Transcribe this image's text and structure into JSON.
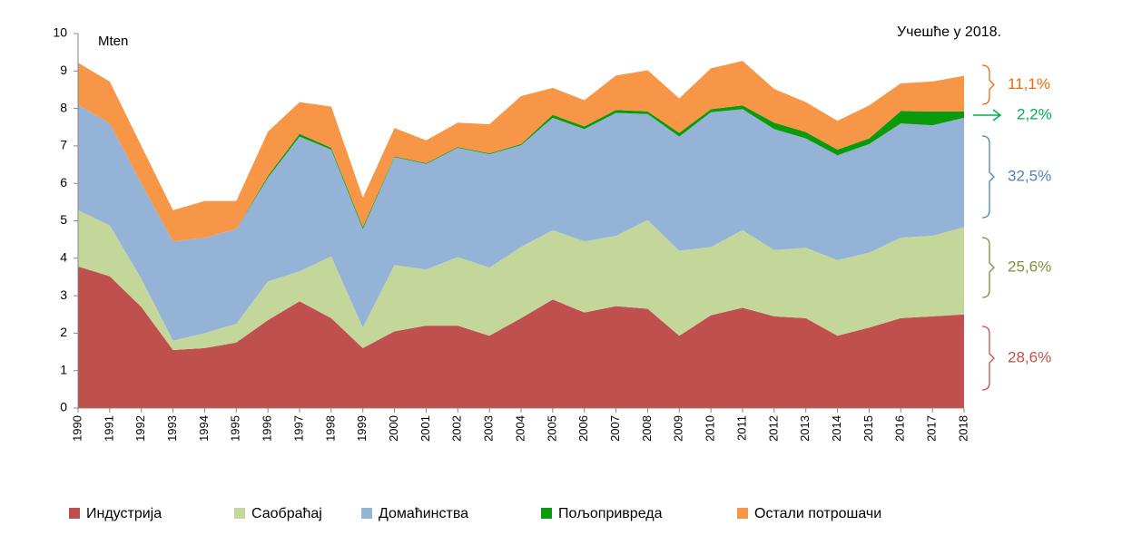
{
  "chart_data": {
    "type": "stacked-area",
    "unit_label": "Mten",
    "share_title": "Учешће у 2018.",
    "categories": [
      "1990",
      "1991",
      "1992",
      "1993",
      "1994",
      "1995",
      "1996",
      "1997",
      "1998",
      "1999",
      "2000",
      "2001",
      "2002",
      "2003",
      "2004",
      "2005",
      "2006",
      "2007",
      "2008",
      "2009",
      "2010",
      "2011",
      "2012",
      "2013",
      "2014",
      "2015",
      "2016",
      "2017",
      "2018"
    ],
    "series": [
      {
        "name": "Индустрија",
        "color": "#c0504d",
        "values": [
          3.78,
          3.52,
          2.7,
          1.55,
          1.6,
          1.75,
          2.35,
          2.85,
          2.4,
          1.6,
          2.05,
          2.2,
          2.2,
          1.93,
          2.4,
          2.9,
          2.55,
          2.72,
          2.65,
          1.93,
          2.48,
          2.68,
          2.45,
          2.4,
          1.93,
          2.15,
          2.4,
          2.45,
          2.5
        ]
      },
      {
        "name": "Саобраћај",
        "color": "#c4d79b",
        "values": [
          1.5,
          1.36,
          0.75,
          0.25,
          0.4,
          0.5,
          1.03,
          0.8,
          1.65,
          0.55,
          1.77,
          1.5,
          1.83,
          1.82,
          1.9,
          1.85,
          1.9,
          1.88,
          2.37,
          2.27,
          1.82,
          2.07,
          1.77,
          1.88,
          2.02,
          2.0,
          2.15,
          2.15,
          2.33
        ]
      },
      {
        "name": "Домаћинства",
        "color": "#95b3d7",
        "values": [
          2.82,
          2.72,
          2.55,
          2.65,
          2.55,
          2.53,
          2.77,
          3.6,
          2.85,
          2.63,
          2.88,
          2.82,
          2.92,
          3.03,
          2.72,
          3.0,
          3.0,
          3.28,
          2.83,
          3.05,
          3.6,
          3.23,
          3.23,
          2.92,
          2.8,
          2.9,
          3.05,
          2.95,
          2.92
        ]
      },
      {
        "name": "Пољопривреда",
        "color": "#0a9a0a",
        "values": [
          0,
          0,
          0,
          0,
          0,
          0,
          0.05,
          0.07,
          0.05,
          0.05,
          0.02,
          0.02,
          0.02,
          0.02,
          0.03,
          0.08,
          0.07,
          0.08,
          0.07,
          0.1,
          0.08,
          0.1,
          0.17,
          0.17,
          0.15,
          0.15,
          0.33,
          0.37,
          0.17
        ]
      },
      {
        "name": "Остали потрошачи",
        "color": "#f79646",
        "values": [
          1.12,
          1.12,
          1.0,
          0.83,
          0.98,
          0.75,
          1.18,
          0.85,
          1.1,
          0.79,
          0.76,
          0.61,
          0.65,
          0.78,
          1.28,
          0.72,
          0.7,
          0.92,
          1.1,
          0.92,
          1.09,
          1.19,
          0.9,
          0.8,
          0.77,
          0.88,
          0.74,
          0.8,
          0.95
        ]
      }
    ],
    "annotations": [
      {
        "text": "11,1%",
        "color": "#e46c0a"
      },
      {
        "text": "2,2%",
        "color": "#00b050"
      },
      {
        "text": "32,5%",
        "color": "#4f81bd"
      },
      {
        "text": "25,6%",
        "color": "#77933c"
      },
      {
        "text": "28,6%",
        "color": "#c0504d"
      }
    ],
    "ylim": [
      0,
      10
    ],
    "yticks": [
      0,
      1,
      2,
      3,
      4,
      5,
      6,
      7,
      8,
      9,
      10
    ]
  }
}
